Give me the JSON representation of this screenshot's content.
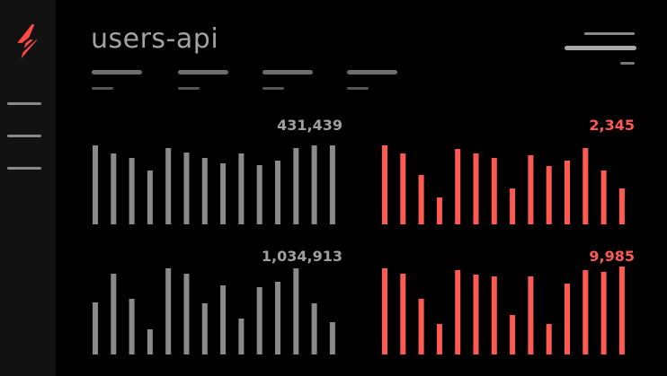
{
  "app": {
    "title": "users-api"
  },
  "sidebar": {
    "logo_icon": "lightning-bolt-icon",
    "menu_lines": 3
  },
  "colors": {
    "background": "#000000",
    "sidebar": "#121212",
    "neutral_bars": "#8a8a8a",
    "alert_bars": "#ff5a52",
    "title": "#a3a3a3"
  },
  "header": {
    "tabs": [
      {},
      {},
      {},
      {}
    ],
    "menu_icon": "hamburger-menu-icon"
  },
  "metrics": [
    {
      "value": "431,439",
      "color": "gray",
      "bars": [
        0.88,
        0.79,
        0.74,
        0.6,
        0.85,
        0.8,
        0.74,
        0.68,
        0.79,
        0.66,
        0.71,
        0.85,
        0.88,
        0.88
      ]
    },
    {
      "value": "2,345",
      "color": "red",
      "bars": [
        0.88,
        0.79,
        0.55,
        0.3,
        0.84,
        0.79,
        0.74,
        0.4,
        0.77,
        0.65,
        0.71,
        0.85,
        0.6,
        0.4
      ]
    },
    {
      "value": "1,034,913",
      "color": "gray",
      "bars": [
        0.58,
        0.9,
        0.62,
        0.28,
        0.96,
        0.9,
        0.57,
        0.77,
        0.4,
        0.75,
        0.81,
        0.96,
        0.57,
        0.36
      ]
    },
    {
      "value": "9,985",
      "color": "red",
      "bars": [
        0.96,
        0.9,
        0.62,
        0.34,
        0.94,
        0.89,
        0.87,
        0.44,
        0.87,
        0.34,
        0.79,
        0.94,
        0.92,
        0.98
      ]
    }
  ]
}
